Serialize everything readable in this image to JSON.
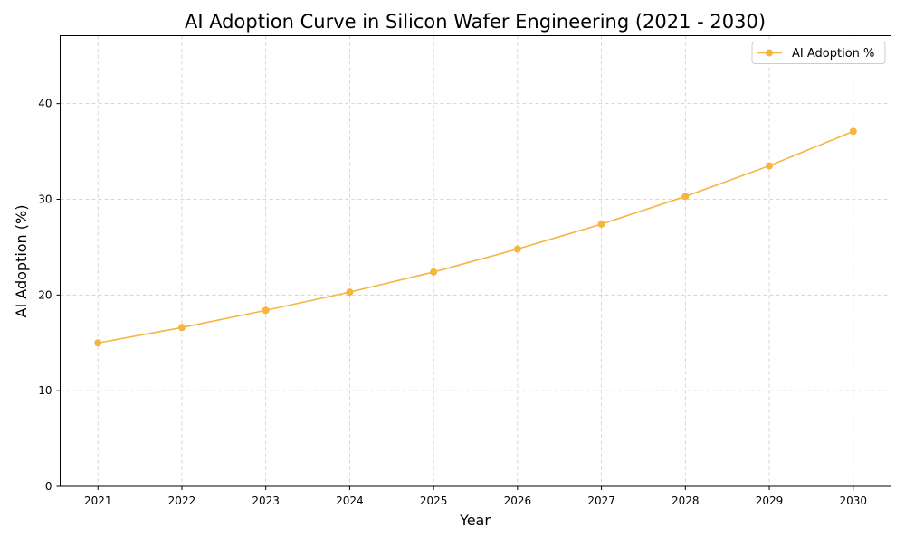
{
  "chart_data": {
    "type": "line",
    "title": "AI Adoption Curve in Silicon Wafer Engineering (2021 - 2030)",
    "xlabel": "Year",
    "ylabel": "AI Adoption (%)",
    "x": [
      2021,
      2022,
      2023,
      2024,
      2025,
      2026,
      2027,
      2028,
      2029,
      2030
    ],
    "xticks": [
      "2021",
      "2022",
      "2023",
      "2024",
      "2025",
      "2026",
      "2027",
      "2028",
      "2029",
      "2030"
    ],
    "yticks": [
      "0",
      "10",
      "20",
      "30",
      "40"
    ],
    "xlim": [
      2020.55,
      2030.45
    ],
    "ylim": [
      0,
      47.1
    ],
    "grid": true,
    "legend_position": "top-right",
    "series": [
      {
        "name": "AI Adoption %",
        "color": "#f5b540",
        "marker": "circle",
        "values": [
          15.0,
          16.6,
          18.4,
          20.3,
          22.4,
          24.8,
          27.4,
          30.3,
          33.5,
          37.1
        ]
      }
    ]
  }
}
